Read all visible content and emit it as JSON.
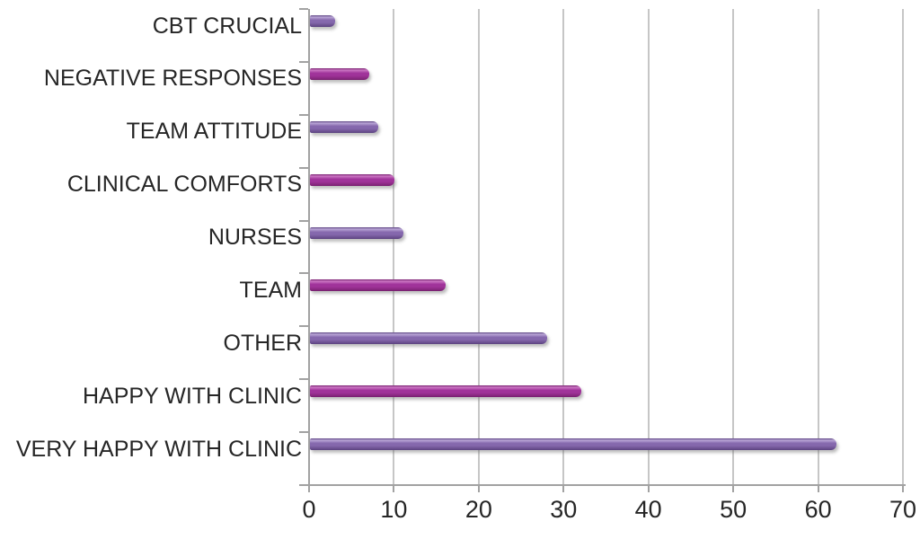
{
  "chart_data": {
    "type": "bar",
    "orientation": "horizontal",
    "title": "",
    "xlabel": "",
    "ylabel": "",
    "legend": "none",
    "grid": "vertical-gridlines",
    "background_color": "#ffffff",
    "text_color": "#262626",
    "gridline_color": "#c6c6c6",
    "axis_color": "#a2a2a2",
    "categories": [
      "CBT CRUCIAL",
      "NEGATIVE RESPONSES",
      "TEAM ATTITUDE",
      "CLINICAL COMFORTS",
      "NURSES",
      "TEAM",
      "OTHER",
      "HAPPY WITH CLINIC",
      "VERY HAPPY WITH CLINIC"
    ],
    "values": [
      3,
      7,
      8,
      10,
      11,
      16,
      28,
      32,
      62
    ],
    "bar_colors": [
      "purple",
      "magenta",
      "purple",
      "magenta",
      "purple",
      "magenta",
      "purple",
      "magenta",
      "purple"
    ],
    "palette": {
      "purple": {
        "edge": "#5b4380",
        "highlight": "#b9a5d6",
        "main": "#8568ad",
        "shade": "#6d5292"
      },
      "magenta": {
        "edge": "#761f6e",
        "highlight": "#cb76c3",
        "main": "#a0339a",
        "shade": "#8a2982"
      }
    },
    "xlim": [
      0,
      70
    ],
    "xticks": [
      0,
      10,
      20,
      30,
      40,
      50,
      60,
      70
    ],
    "xtick_labels": [
      "0",
      "10",
      "20",
      "30",
      "40",
      "50",
      "60",
      "70"
    ]
  }
}
